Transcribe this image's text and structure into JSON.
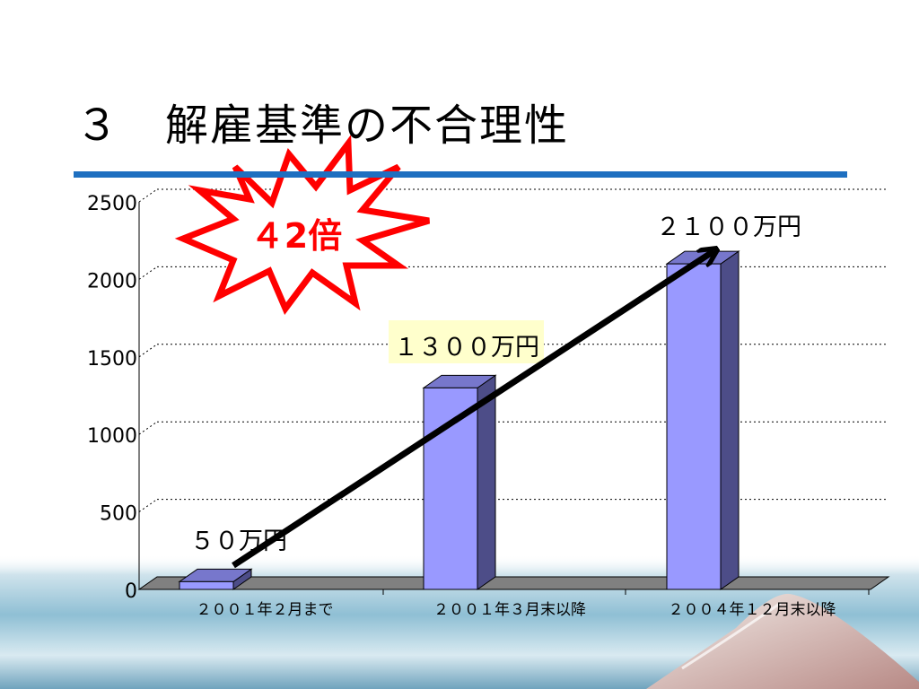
{
  "slide": {
    "title": "３　解雇基準の不合理性"
  },
  "callout": {
    "text": "４2倍",
    "fill": "#ffffff",
    "stroke": "#ff0000",
    "text_color": "#ff0000"
  },
  "colors": {
    "bar_front": "#9999ff",
    "bar_side": "#4d4d88",
    "bar_top": "#7777cc",
    "floor": "#808080",
    "arrow": "#000000",
    "title_rule": "#1e6fc0",
    "label_highlight": "#ffffcc"
  },
  "chart_data": {
    "type": "bar",
    "categories": [
      "２００１年２月まで",
      "２００１年３月末以降",
      "２００４年１２月末以降"
    ],
    "values": [
      50,
      1300,
      2100
    ],
    "data_labels": [
      "５０万円",
      "１３００万円",
      "２１００万円"
    ],
    "ylim": [
      0,
      2500
    ],
    "yticks": [
      0,
      500,
      1000,
      1500,
      2000,
      2500
    ],
    "ytick_labels": [
      "0",
      "500",
      "1000",
      "1500",
      "2000",
      "2500"
    ],
    "grid": true,
    "three_d": true
  }
}
